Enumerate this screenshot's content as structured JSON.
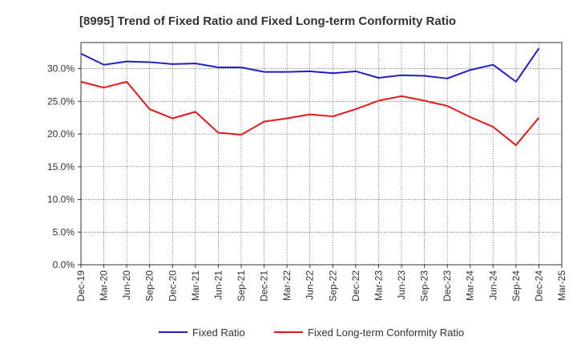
{
  "chart_data": {
    "type": "line",
    "title": "[8995]  Trend of Fixed Ratio and Fixed Long-term Conformity Ratio",
    "xlabel": "",
    "ylabel": "",
    "x": [
      "Dec-19",
      "Mar-20",
      "Jun-20",
      "Sep-20",
      "Dec-20",
      "Mar-21",
      "Jun-21",
      "Sep-21",
      "Dec-21",
      "Mar-22",
      "Jun-22",
      "Sep-22",
      "Dec-22",
      "Mar-23",
      "Jun-23",
      "Sep-23",
      "Dec-23",
      "Mar-24",
      "Jun-24",
      "Sep-24",
      "Dec-24",
      "Mar-25"
    ],
    "x_tick_labels": [
      "Dec-19",
      "Mar-20",
      "Jun-20",
      "Sep-20",
      "Dec-20",
      "Mar-21",
      "Jun-21",
      "Sep-21",
      "Dec-21",
      "Mar-22",
      "Jun-22",
      "Sep-22",
      "Dec-22",
      "Mar-23",
      "Jun-23",
      "Sep-23",
      "Dec-23",
      "Mar-24",
      "Jun-24",
      "Sep-24",
      "Dec-24",
      "Mar-25"
    ],
    "y_ticks": [
      0,
      5,
      10,
      15,
      20,
      25,
      30
    ],
    "y_tick_labels": [
      "0.0%",
      "5.0%",
      "10.0%",
      "15.0%",
      "20.0%",
      "25.0%",
      "30.0%"
    ],
    "ylim": [
      0,
      34
    ],
    "grid": true,
    "legend_position": "bottom",
    "series": [
      {
        "name": "Fixed Ratio",
        "color": "#1f1fcc",
        "values": [
          32.3,
          30.6,
          31.1,
          31.0,
          30.7,
          30.8,
          30.2,
          30.2,
          29.5,
          29.5,
          29.6,
          29.3,
          29.6,
          28.6,
          29.0,
          28.9,
          28.5,
          29.8,
          30.6,
          28.0,
          33.1,
          null
        ]
      },
      {
        "name": "Fixed Long-term Conformity Ratio",
        "color": "#e61919",
        "values": [
          28.0,
          27.1,
          28.0,
          23.8,
          22.4,
          23.4,
          20.2,
          19.9,
          21.9,
          22.4,
          23.0,
          22.7,
          23.8,
          25.1,
          25.8,
          25.1,
          24.3,
          22.6,
          21.1,
          18.3,
          22.5,
          null
        ]
      }
    ]
  }
}
